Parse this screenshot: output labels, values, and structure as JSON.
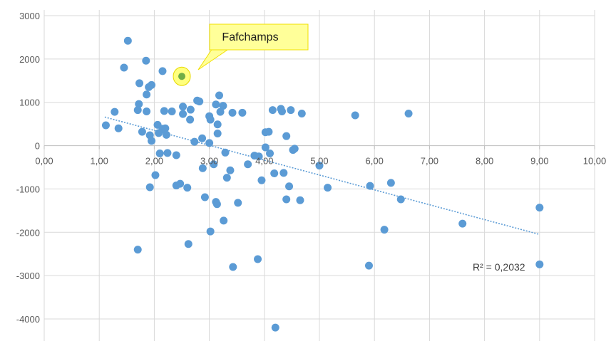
{
  "chart_data": {
    "type": "scatter",
    "title": "",
    "xlabel": "",
    "ylabel": "",
    "xlim": [
      0,
      10
    ],
    "ylim": [
      -4500,
      3000
    ],
    "x_ticks": [
      "0,00",
      "1,00",
      "2,00",
      "3,00",
      "4,00",
      "5,00",
      "6,00",
      "7,00",
      "8,00",
      "9,00",
      "10,00"
    ],
    "x_tick_values": [
      0,
      1,
      2,
      3,
      4,
      5,
      6,
      7,
      8,
      9,
      10
    ],
    "y_ticks": [
      "3000",
      "2000",
      "1000",
      "0",
      "-1000",
      "-2000",
      "-3000",
      "-4000"
    ],
    "y_tick_values": [
      3000,
      2000,
      1000,
      0,
      -1000,
      -2000,
      -3000,
      -4000
    ],
    "grid": true,
    "legend": "none",
    "colors": {
      "points": "#5b9bd5",
      "highlight_point": "#70ad47",
      "highlight_ring": "#ffff66",
      "trendline": "#5b9bd5",
      "callout_fill": "#ffff99",
      "callout_border": "#f2e000",
      "grid": "#d9d9d9",
      "axis": "#bfbfbf"
    },
    "highlight": {
      "label": "Fafchamps",
      "x": 2.5,
      "y": 1600
    },
    "trendline": {
      "x_start": 1.1,
      "y_start": 660,
      "x_end": 9.0,
      "y_end": -2050,
      "r2_text": "R² = 0,2032"
    },
    "points": [
      [
        1.12,
        470
      ],
      [
        1.28,
        780
      ],
      [
        1.35,
        400
      ],
      [
        1.45,
        1800
      ],
      [
        1.52,
        2420
      ],
      [
        1.7,
        820
      ],
      [
        1.72,
        960
      ],
      [
        1.73,
        1440
      ],
      [
        1.78,
        320
      ],
      [
        1.7,
        -2400
      ],
      [
        1.85,
        1960
      ],
      [
        1.86,
        1180
      ],
      [
        1.9,
        1350
      ],
      [
        1.86,
        790
      ],
      [
        1.95,
        1400
      ],
      [
        1.92,
        240
      ],
      [
        1.95,
        110
      ],
      [
        1.92,
        -960
      ],
      [
        2.02,
        -680
      ],
      [
        2.06,
        480
      ],
      [
        2.08,
        290
      ],
      [
        2.1,
        -180
      ],
      [
        2.15,
        1720
      ],
      [
        2.15,
        390
      ],
      [
        2.18,
        800
      ],
      [
        2.2,
        400
      ],
      [
        2.22,
        250
      ],
      [
        2.24,
        -170
      ],
      [
        2.32,
        790
      ],
      [
        2.4,
        -220
      ],
      [
        2.4,
        -920
      ],
      [
        2.47,
        -880
      ],
      [
        2.52,
        730
      ],
      [
        2.52,
        900
      ],
      [
        2.6,
        -970
      ],
      [
        2.62,
        -2270
      ],
      [
        2.65,
        600
      ],
      [
        2.66,
        830
      ],
      [
        2.73,
        90
      ],
      [
        2.78,
        1040
      ],
      [
        2.82,
        1020
      ],
      [
        2.87,
        170
      ],
      [
        2.88,
        -520
      ],
      [
        2.92,
        -1190
      ],
      [
        3.0,
        680
      ],
      [
        3.02,
        600
      ],
      [
        3.0,
        60
      ],
      [
        3.02,
        -1980
      ],
      [
        3.08,
        -430
      ],
      [
        3.12,
        950
      ],
      [
        3.12,
        -1300
      ],
      [
        3.14,
        -1350
      ],
      [
        3.15,
        280
      ],
      [
        3.15,
        490
      ],
      [
        3.18,
        1160
      ],
      [
        3.2,
        780
      ],
      [
        3.25,
        920
      ],
      [
        3.26,
        -1730
      ],
      [
        3.29,
        -160
      ],
      [
        3.32,
        -740
      ],
      [
        3.38,
        -570
      ],
      [
        3.42,
        760
      ],
      [
        3.43,
        -2800
      ],
      [
        3.52,
        -1320
      ],
      [
        3.6,
        760
      ],
      [
        3.7,
        -430
      ],
      [
        3.82,
        -230
      ],
      [
        3.88,
        -2620
      ],
      [
        3.9,
        -250
      ],
      [
        3.95,
        -800
      ],
      [
        4.02,
        -40
      ],
      [
        4.02,
        310
      ],
      [
        4.08,
        320
      ],
      [
        4.1,
        -180
      ],
      [
        4.15,
        820
      ],
      [
        4.18,
        -640
      ],
      [
        4.2,
        -4200
      ],
      [
        4.3,
        850
      ],
      [
        4.32,
        790
      ],
      [
        4.35,
        -630
      ],
      [
        4.4,
        220
      ],
      [
        4.4,
        -1240
      ],
      [
        4.45,
        -940
      ],
      [
        4.48,
        820
      ],
      [
        4.52,
        -100
      ],
      [
        4.55,
        -70
      ],
      [
        4.68,
        740
      ],
      [
        4.65,
        -1260
      ],
      [
        5.0,
        -460
      ],
      [
        5.15,
        -970
      ],
      [
        5.65,
        700
      ],
      [
        5.9,
        -2770
      ],
      [
        5.92,
        -930
      ],
      [
        6.18,
        -1940
      ],
      [
        6.3,
        -860
      ],
      [
        6.48,
        -1240
      ],
      [
        6.62,
        740
      ],
      [
        7.6,
        -1800
      ],
      [
        9.0,
        -1430
      ],
      [
        9.0,
        -2740
      ]
    ]
  }
}
